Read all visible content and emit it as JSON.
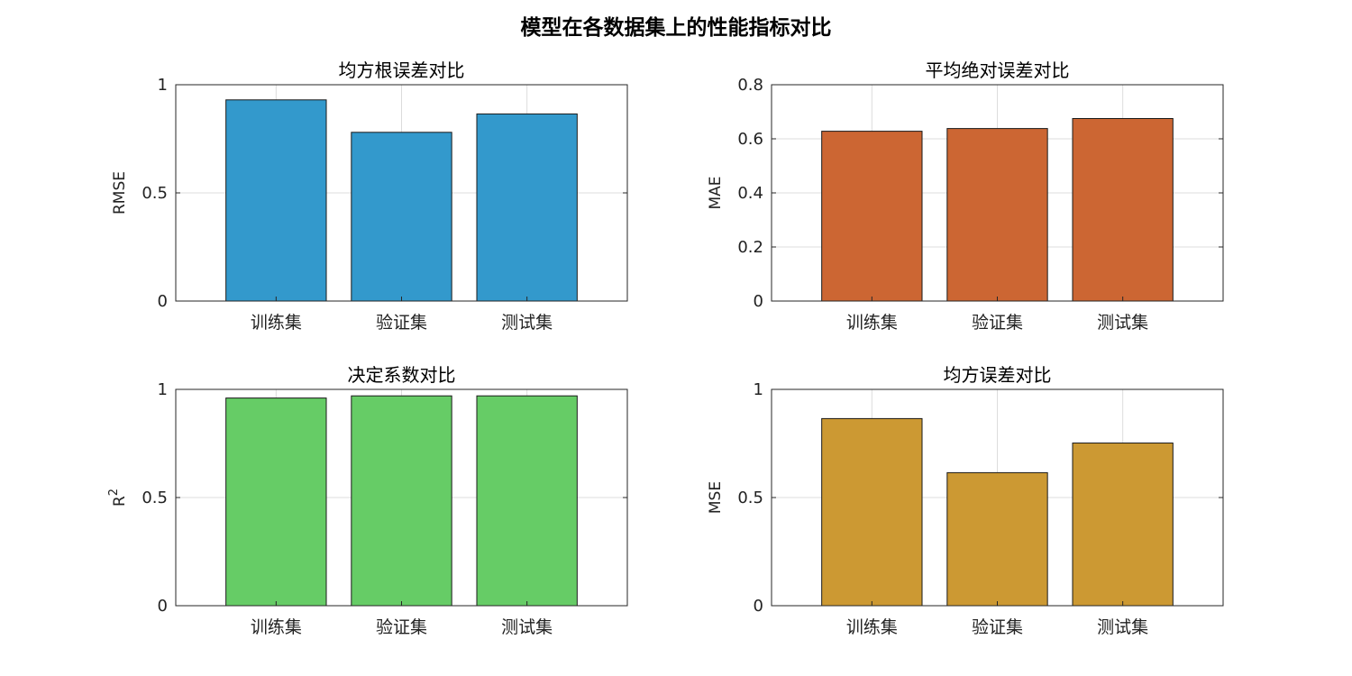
{
  "figure": {
    "title": "模型在各数据集上的性能指标对比"
  },
  "chart_data": [
    {
      "type": "bar",
      "title": "均方根误差对比",
      "ylabel": "RMSE",
      "categories": [
        "训练集",
        "验证集",
        "测试集"
      ],
      "values": [
        0.93,
        0.78,
        0.865
      ],
      "ylim": [
        0,
        1
      ],
      "yticks": [
        0,
        0.5,
        1
      ],
      "ytick_labels": [
        "0",
        "0.5",
        "1"
      ],
      "color": "#3399cc",
      "grid": true
    },
    {
      "type": "bar",
      "title": "平均绝对误差对比",
      "ylabel": "MAE",
      "categories": [
        "训练集",
        "验证集",
        "测试集"
      ],
      "values": [
        0.628,
        0.638,
        0.675
      ],
      "ylim": [
        0,
        0.8
      ],
      "yticks": [
        0,
        0.2,
        0.4,
        0.6,
        0.8
      ],
      "ytick_labels": [
        "0",
        "0.2",
        "0.4",
        "0.6",
        "0.8"
      ],
      "color": "#cc6633",
      "grid": true
    },
    {
      "type": "bar",
      "title": "决定系数对比",
      "ylabel": "R",
      "ylabel_sup": "2",
      "categories": [
        "训练集",
        "验证集",
        "测试集"
      ],
      "values": [
        0.96,
        0.97,
        0.97
      ],
      "ylim": [
        0,
        1
      ],
      "yticks": [
        0,
        0.5,
        1
      ],
      "ytick_labels": [
        "0",
        "0.5",
        "1"
      ],
      "color": "#66cc66",
      "grid": true
    },
    {
      "type": "bar",
      "title": "均方误差对比",
      "ylabel": "MSE",
      "categories": [
        "训练集",
        "验证集",
        "测试集"
      ],
      "values": [
        0.865,
        0.615,
        0.752
      ],
      "ylim": [
        0,
        1
      ],
      "yticks": [
        0,
        0.5,
        1
      ],
      "ytick_labels": [
        "0",
        "0.5",
        "1"
      ],
      "color": "#cc9933",
      "grid": true
    }
  ]
}
